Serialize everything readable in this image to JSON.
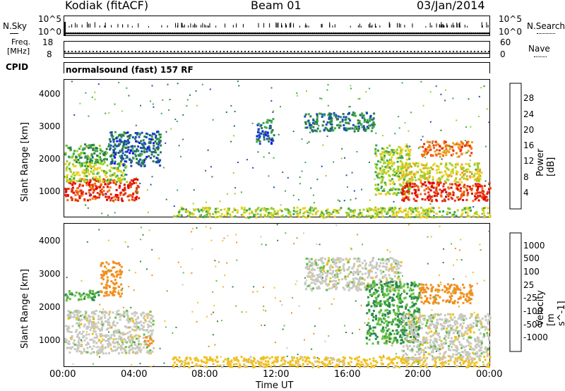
{
  "header": {
    "station": "Kodiak (fitACF)",
    "beam": "Beam 01",
    "date": "03/Jan/2014"
  },
  "nsky_panel": {
    "left_label": "N.Sky",
    "right_label": "N.Search",
    "left_ticks": [
      "10^5",
      "10^0"
    ],
    "right_ticks": [
      "10^5",
      "10^0"
    ]
  },
  "freq_panel": {
    "left_label_line1": "Freq.",
    "left_label_line2": "[MHz]",
    "right_label": "Nave",
    "left_ticks": [
      "18",
      "8"
    ],
    "right_ticks": [
      "60",
      "0"
    ]
  },
  "cpid": {
    "label": "CPID",
    "text": "normalsound (fast) 157 RF"
  },
  "axes": {
    "x_ticks": [
      "00:00",
      "04:00",
      "08:00",
      "12:00",
      "16:00",
      "20:00",
      "00:00"
    ],
    "x_label": "Time UT",
    "y_label": "Slant Range [km]",
    "y_ticks": [
      "4000",
      "3000",
      "2000",
      "1000"
    ]
  },
  "power_colorbar": {
    "label": "Power [dB]",
    "ticks": [
      "28",
      "24",
      "20",
      "16",
      "12",
      "8",
      "4"
    ],
    "colors": [
      "#1010ee",
      "#1a4ab8",
      "#2a7d4a",
      "#3aa84a",
      "#9ccf2a",
      "#f0d020",
      "#f0a020",
      "#f07010",
      "#e83010",
      "#e00000"
    ]
  },
  "velocity_colorbar": {
    "label": "Velocity [m s^-1]",
    "ticks": [
      "1000",
      "500",
      "100",
      "25",
      "-25",
      "-100",
      "-500",
      "-1000"
    ],
    "colors": [
      "#1a3ad0",
      "#2a5fb8",
      "#2a8a4a",
      "#60c040",
      "#c8c8c0",
      "#f0c020",
      "#f09020",
      "#f06010",
      "#e02000"
    ]
  },
  "chart_data": [
    {
      "type": "line",
      "title": "N.Sky / N.Search",
      "x_range_hours": [
        0,
        24
      ],
      "y_scale": "log",
      "ylim": [
        1,
        100000
      ],
      "series": [
        {
          "name": "N.Sky",
          "values": [
            3,
            3,
            3,
            3,
            3,
            3,
            3,
            3,
            3,
            3,
            3,
            3,
            3,
            3,
            3,
            3,
            3,
            3,
            3,
            3,
            3,
            3,
            3,
            3,
            3
          ]
        },
        {
          "name": "N.Search",
          "values": [
            3,
            3,
            3,
            3,
            3,
            3,
            3,
            3,
            3,
            3,
            3,
            3,
            3,
            3,
            3,
            3,
            3,
            3,
            3,
            3,
            3,
            3,
            3,
            3,
            3
          ]
        }
      ]
    },
    {
      "type": "line",
      "title": "Freq. [MHz] / Nave",
      "x_range_hours": [
        0,
        24
      ],
      "freq_ylim": [
        8,
        18
      ],
      "nave_ylim": [
        0,
        60
      ],
      "series": [
        {
          "name": "Freq.",
          "values": [
            10.5,
            10.5,
            10.5,
            10.5,
            10.5,
            10.5,
            10.5,
            10.5,
            10.5,
            10.5,
            10.5,
            10.5,
            10.5,
            10.5,
            10.5,
            10.5,
            10.5,
            10.5,
            10.5,
            10.5,
            10.5,
            10.5,
            10.5,
            10.5,
            10.5
          ]
        },
        {
          "name": "Nave",
          "values": [
            22,
            22,
            22,
            22,
            22,
            22,
            22,
            22,
            22,
            22,
            22,
            22,
            22,
            22,
            22,
            22,
            22,
            22,
            22,
            22,
            22,
            22,
            22,
            22,
            22
          ]
        }
      ]
    },
    {
      "type": "heatmap",
      "title": "Power [dB]",
      "x_range_hours": [
        0,
        24
      ],
      "ylim": [
        180,
        4500
      ],
      "zlim": [
        0,
        30
      ],
      "blobs": [
        {
          "t0": 0.0,
          "t1": 4.2,
          "r0": 700,
          "r1": 1400,
          "value": 26
        },
        {
          "t0": 0.0,
          "t1": 3.5,
          "r0": 1300,
          "r1": 1900,
          "value": 14
        },
        {
          "t0": 0.0,
          "t1": 2.8,
          "r0": 1900,
          "r1": 2500,
          "value": 10
        },
        {
          "t0": 2.5,
          "t1": 5.4,
          "r0": 1800,
          "r1": 2900,
          "value": 6
        },
        {
          "t0": 10.8,
          "t1": 11.8,
          "r0": 2500,
          "r1": 3300,
          "value": 6
        },
        {
          "t0": 6.0,
          "t1": 24.0,
          "r0": 180,
          "r1": 500,
          "value": 14
        },
        {
          "t0": 13.5,
          "t1": 17.5,
          "r0": 2900,
          "r1": 3500,
          "value": 8
        },
        {
          "t0": 17.5,
          "t1": 19.5,
          "r0": 900,
          "r1": 2500,
          "value": 14
        },
        {
          "t0": 19.0,
          "t1": 24.0,
          "r0": 700,
          "r1": 1300,
          "value": 26
        },
        {
          "t0": 20.0,
          "t1": 23.0,
          "r0": 2100,
          "r1": 2600,
          "value": 22
        },
        {
          "t0": 19.0,
          "t1": 23.5,
          "r0": 1300,
          "r1": 1900,
          "value": 16
        }
      ]
    },
    {
      "type": "heatmap",
      "title": "Velocity [m s^-1]",
      "x_range_hours": [
        0,
        24
      ],
      "ylim": [
        180,
        4500
      ],
      "zlim": [
        -1000,
        1000
      ],
      "blobs": [
        {
          "t0": 0.0,
          "t1": 5.0,
          "r0": 600,
          "r1": 1900,
          "value": 0
        },
        {
          "t0": 0.0,
          "t1": 2.0,
          "r0": 2200,
          "r1": 2500,
          "value": 100
        },
        {
          "t0": 2.0,
          "t1": 3.2,
          "r0": 2300,
          "r1": 3400,
          "value": -300
        },
        {
          "t0": 4.5,
          "t1": 5.0,
          "r0": 800,
          "r1": 1100,
          "value": -300
        },
        {
          "t0": 6.0,
          "t1": 24.0,
          "r0": 180,
          "r1": 500,
          "value": -50
        },
        {
          "t0": 13.5,
          "t1": 19.0,
          "r0": 2500,
          "r1": 3500,
          "value": 0
        },
        {
          "t0": 17.0,
          "t1": 20.0,
          "r0": 900,
          "r1": 2800,
          "value": 100
        },
        {
          "t0": 19.0,
          "t1": 24.0,
          "r0": 400,
          "r1": 1800,
          "value": 0
        },
        {
          "t0": 20.0,
          "t1": 23.0,
          "r0": 2100,
          "r1": 2700,
          "value": -400
        }
      ]
    }
  ]
}
